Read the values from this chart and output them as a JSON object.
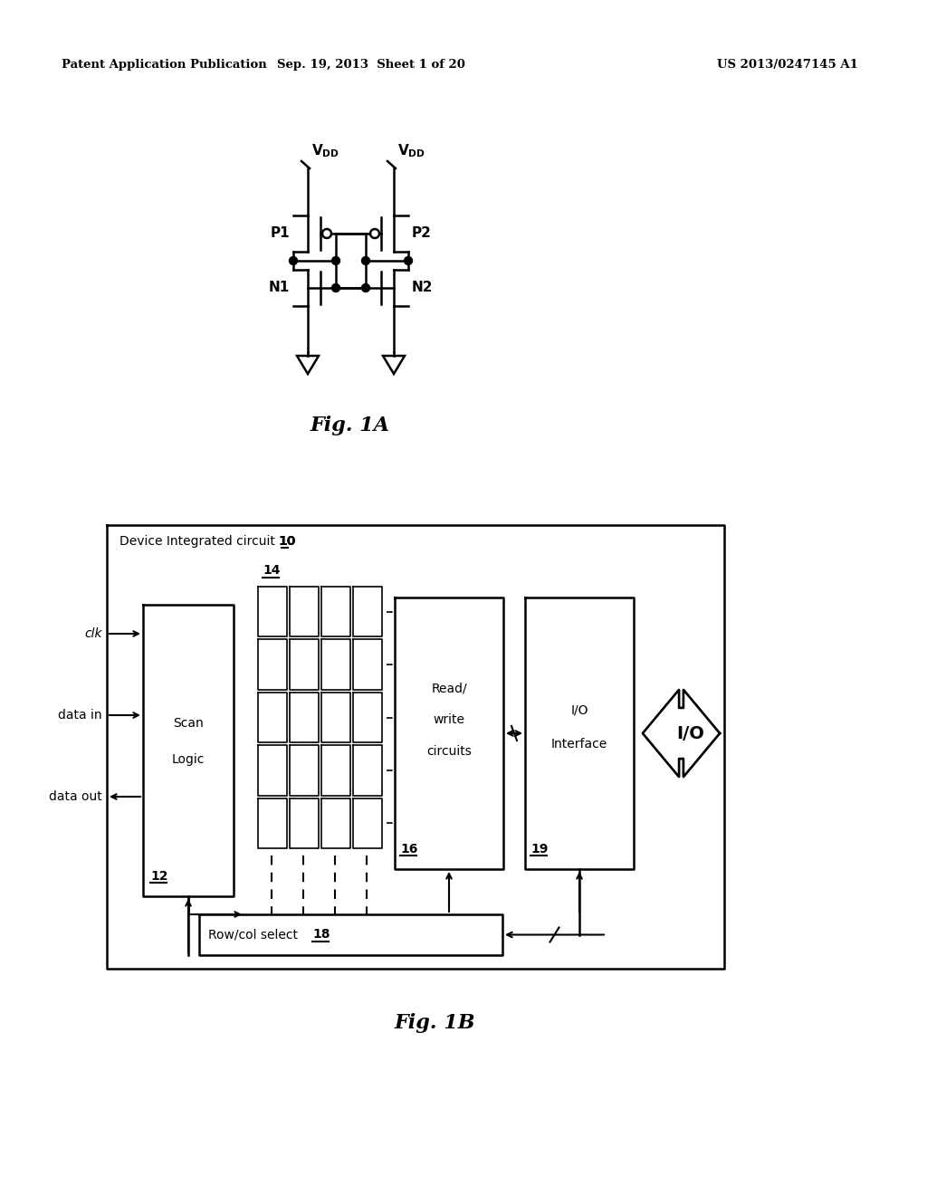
{
  "header_left": "Patent Application Publication",
  "header_mid": "Sep. 19, 2013  Sheet 1 of 20",
  "header_right": "US 2013/0247145 A1",
  "fig1a_label": "Fig. 1A",
  "fig1b_label": "Fig. 1B",
  "bg_color": "#ffffff"
}
